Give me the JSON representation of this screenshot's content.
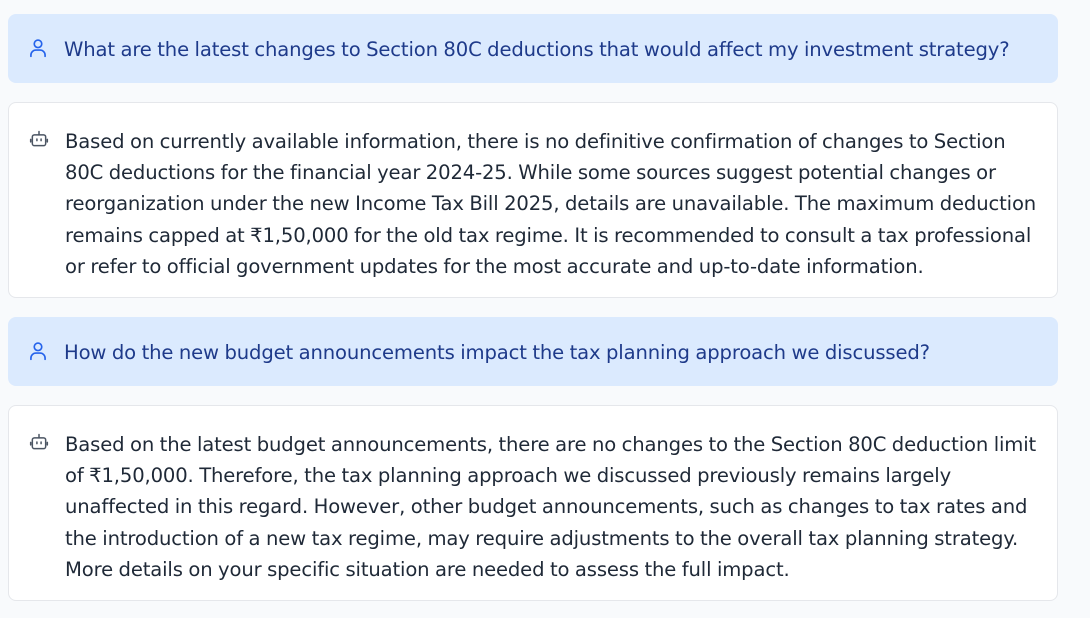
{
  "conversation": {
    "messages": [
      {
        "role": "user",
        "icon": "user-icon",
        "text": "What are the latest changes to Section 80C deductions that would affect my investment strategy?"
      },
      {
        "role": "assistant",
        "icon": "bot-icon",
        "text": "Based on currently available information, there is no definitive confirmation of changes to Section 80C deductions for the financial year 2024-25. While some sources suggest potential changes or reorganization under the new Income Tax Bill 2025, details are unavailable. The maximum deduction remains capped at ₹1,50,000 for the old tax regime. It is recommended to consult a tax professional or refer to official government updates for the most accurate and up-to-date information."
      },
      {
        "role": "user",
        "icon": "user-icon",
        "text": "How do the new budget announcements impact the tax planning approach we discussed?"
      },
      {
        "role": "assistant",
        "icon": "bot-icon",
        "text": "Based on the latest budget announcements, there are no changes to the Section 80C deduction limit of ₹1,50,000. Therefore, the tax planning approach we discussed previously remains largely unaffected in this regard. However, other budget announcements, such as changes to tax rates and the introduction of a new tax regime, may require adjustments to the overall tax planning strategy. More details on your specific situation are needed to assess the full impact."
      }
    ]
  },
  "colors": {
    "page_background": "#f8fafc",
    "user_bubble": "#dbeafe",
    "user_text": "#1e3a8a",
    "user_icon": "#2563eb",
    "assistant_bubble": "#ffffff",
    "assistant_text": "#1f2937",
    "assistant_icon": "#4b5563"
  }
}
